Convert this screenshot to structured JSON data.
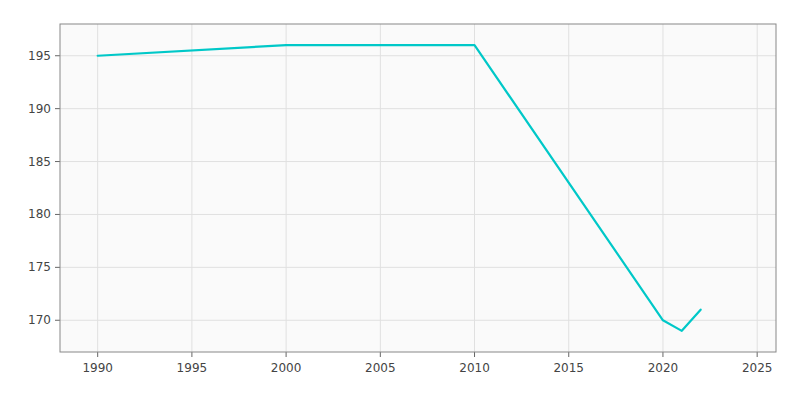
{
  "chart_data": {
    "type": "line",
    "x": [
      1990,
      2000,
      2010,
      2020,
      2021,
      2022
    ],
    "values": [
      195,
      196,
      196,
      170,
      169,
      171
    ],
    "color": "#00c8c8",
    "xlim": [
      1988,
      2026
    ],
    "ylim": [
      167,
      198
    ],
    "xticks": [
      1990,
      1995,
      2000,
      2005,
      2010,
      2015,
      2020,
      2025
    ],
    "yticks": [
      170,
      175,
      180,
      185,
      190,
      195
    ],
    "grid": true
  }
}
